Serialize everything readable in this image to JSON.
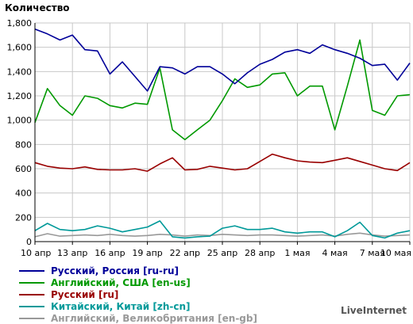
{
  "chart_data": {
    "type": "line",
    "title": "Количество",
    "ylim": [
      0,
      1800
    ],
    "yticks": [
      0,
      200,
      400,
      600,
      800,
      1000,
      1200,
      1400,
      1600,
      1800
    ],
    "ytick_labels": [
      "0",
      "200",
      "400",
      "600",
      "800",
      "1,000",
      "1,200",
      "1,400",
      "1,600",
      "1,800"
    ],
    "grid": true,
    "legend_position": "bottom",
    "x": [
      "10 апр",
      "11 апр",
      "12 апр",
      "13 апр",
      "14 апр",
      "15 апр",
      "16 апр",
      "17 апр",
      "18 апр",
      "19 апр",
      "20 апр",
      "21 апр",
      "22 апр",
      "23 апр",
      "24 апр",
      "25 апр",
      "26 апр",
      "27 апр",
      "28 апр",
      "29 апр",
      "30 апр",
      "1 мая",
      "2 мая",
      "3 мая",
      "4 мая",
      "5 мая",
      "6 мая",
      "7 мая",
      "8 мая",
      "9 мая",
      "10 мая"
    ],
    "xtick_labels": [
      "10 апр",
      "13 апр",
      "16 апр",
      "19 апр",
      "22 апр",
      "25 апр",
      "28 апр",
      "1 мая",
      "4 мая",
      "7 мая",
      "10 мая"
    ],
    "series": [
      {
        "name": "Русский, Россия [ru-ru]",
        "color": "#000099",
        "values": [
          1750,
          1710,
          1660,
          1700,
          1580,
          1570,
          1380,
          1480,
          1360,
          1240,
          1440,
          1430,
          1380,
          1440,
          1440,
          1380,
          1300,
          1390,
          1460,
          1500,
          1560,
          1580,
          1550,
          1620,
          1580,
          1550,
          1510,
          1450,
          1460,
          1330,
          1470
        ]
      },
      {
        "name": "Английский, США [en-us]",
        "color": "#009900",
        "values": [
          980,
          1260,
          1120,
          1040,
          1200,
          1180,
          1120,
          1100,
          1140,
          1130,
          1430,
          920,
          840,
          920,
          1000,
          1160,
          1340,
          1270,
          1290,
          1380,
          1390,
          1200,
          1280,
          1280,
          920,
          1280,
          1660,
          1080,
          1040,
          1200,
          1210
        ]
      },
      {
        "name": "Русский [ru]",
        "color": "#990000",
        "values": [
          650,
          620,
          605,
          600,
          615,
          595,
          590,
          590,
          600,
          580,
          640,
          690,
          590,
          595,
          620,
          605,
          590,
          600,
          660,
          720,
          690,
          665,
          655,
          650,
          670,
          690,
          660,
          630,
          600,
          585,
          650
        ]
      },
      {
        "name": "Китайский, Китай [zh-cn]",
        "color": "#009999",
        "values": [
          90,
          150,
          100,
          90,
          100,
          130,
          110,
          80,
          100,
          120,
          170,
          40,
          30,
          40,
          45,
          110,
          130,
          100,
          100,
          110,
          80,
          70,
          80,
          80,
          40,
          90,
          160,
          50,
          30,
          70,
          90
        ]
      },
      {
        "name": "Английский, Великобритания [en-gb]",
        "color": "#999999",
        "values": [
          40,
          65,
          45,
          50,
          55,
          50,
          60,
          50,
          45,
          50,
          60,
          55,
          45,
          55,
          50,
          60,
          55,
          50,
          55,
          55,
          50,
          45,
          50,
          55,
          45,
          60,
          70,
          55,
          45,
          50,
          55
        ]
      }
    ]
  },
  "brand": "LiveInternet"
}
